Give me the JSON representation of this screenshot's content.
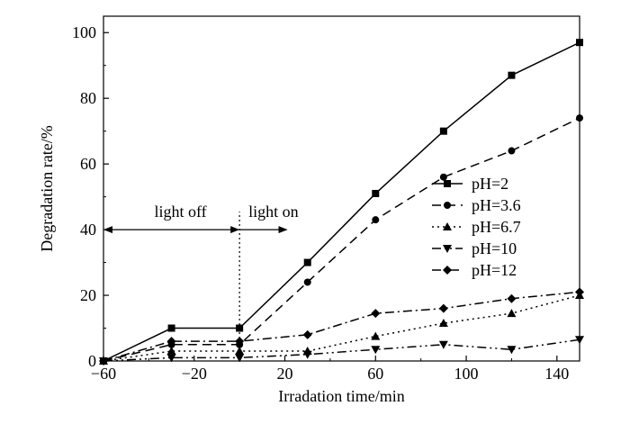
{
  "chart_data": {
    "type": "line",
    "title": "",
    "xlabel": "Irradation time/min",
    "ylabel": "Degradation rate/%",
    "xlim": [
      -60,
      150
    ],
    "ylim": [
      0,
      105
    ],
    "x_ticks": [
      -60,
      -20,
      20,
      60,
      100,
      140
    ],
    "y_ticks": [
      0,
      20,
      40,
      60,
      80,
      100
    ],
    "x_tick_labels": [
      "−60",
      "−20",
      "20",
      "60",
      "100",
      "140"
    ],
    "y_tick_labels": [
      "0",
      "20",
      "40",
      "60",
      "80",
      "100"
    ],
    "grid": false,
    "legend": "center-right",
    "x": [
      -60,
      -30,
      0,
      30,
      60,
      90,
      120,
      150
    ],
    "series": [
      {
        "name": "pH=2",
        "marker": "square",
        "dash": "solid",
        "values": [
          0,
          10,
          10,
          30,
          51,
          70,
          87,
          97
        ]
      },
      {
        "name": "pH=3.6",
        "marker": "circle",
        "dash": "dashed",
        "values": [
          0,
          5,
          5,
          24,
          43,
          56,
          64,
          74
        ]
      },
      {
        "name": "pH=6.7",
        "marker": "triangle-up",
        "dash": "dotted",
        "values": [
          0,
          3,
          3,
          3,
          7.5,
          11.5,
          14.5,
          20
        ]
      },
      {
        "name": "pH=10",
        "marker": "triangle-down",
        "dash": "dash-dot-dot",
        "values": [
          0,
          1,
          1,
          2,
          3.5,
          5,
          3.5,
          6.5
        ]
      },
      {
        "name": "pH=12",
        "marker": "diamond",
        "dash": "dash-dot",
        "values": [
          0,
          6,
          6,
          8,
          14.5,
          16,
          19,
          21
        ]
      }
    ],
    "annotations": {
      "divider_x": 0,
      "light_off": {
        "text": "light off",
        "from_x": -60,
        "to_x": 0,
        "y": 40
      },
      "light_on": {
        "text": "light on",
        "from_x": 0,
        "to_x": 20,
        "y": 40
      }
    }
  }
}
